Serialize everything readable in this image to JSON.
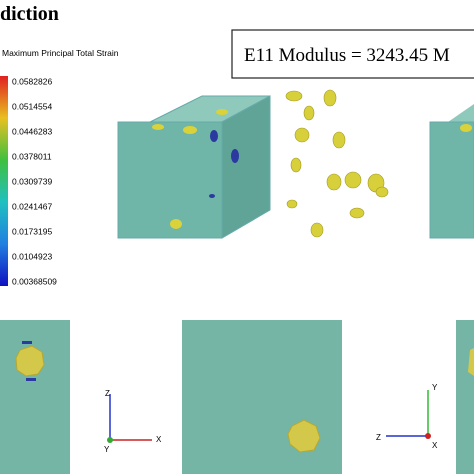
{
  "header": {
    "title": "diction",
    "modulus": "E11 Modulus = 3243.45 M"
  },
  "legend": {
    "title": "Maximum Principal Total Strain",
    "labels": [
      "0.0582826",
      "0.0514554",
      "0.0446283",
      "0.0378011",
      "0.0309739",
      "0.0241467",
      "0.0173195",
      "0.0104923",
      "0.00368509"
    ]
  },
  "triads": [
    {
      "up": "Z",
      "right": "X",
      "depth": "Y"
    },
    {
      "up": "Y",
      "left": "Z",
      "depth": "X"
    }
  ]
}
